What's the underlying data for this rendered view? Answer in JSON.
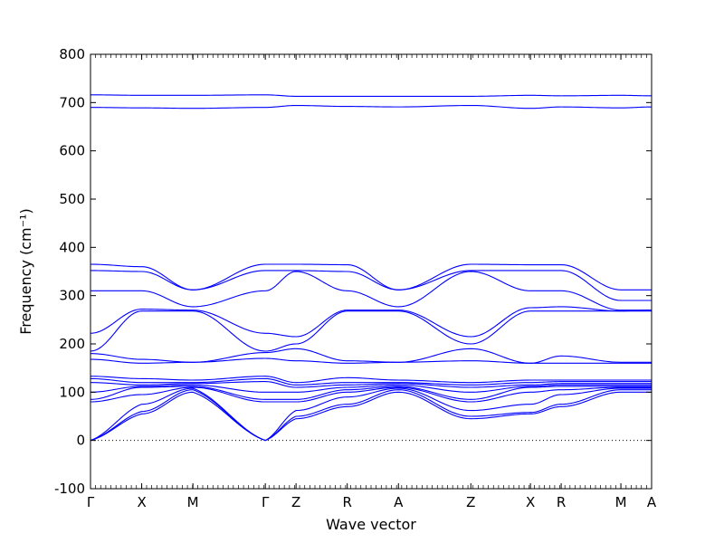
{
  "chart_data": {
    "type": "line",
    "xlabel": "Wave vector",
    "ylabel": "Frequency (cm⁻¹)",
    "ylim": [
      -100,
      800
    ],
    "y_ticks": [
      -100,
      0,
      100,
      200,
      300,
      400,
      500,
      600,
      700,
      800
    ],
    "x_ticks": [
      {
        "label": "Γ",
        "x": 0
      },
      {
        "label": "X",
        "x": 0.5
      },
      {
        "label": "M",
        "x": 1.0
      },
      {
        "label": "Γ",
        "x": 1.707
      },
      {
        "label": "Z",
        "x": 2.007
      },
      {
        "label": "R",
        "x": 2.507
      },
      {
        "label": "A",
        "x": 3.007
      },
      {
        "label": "Z",
        "x": 3.714
      },
      {
        "label": "X",
        "x": 4.296
      },
      {
        "label": "R",
        "x": 4.596
      },
      {
        "label": "M",
        "x": 5.179
      },
      {
        "label": "A",
        "x": 5.479
      }
    ],
    "xlim": [
      0,
      5.479
    ],
    "zero_line": 0,
    "line_color": "#0000ff",
    "branches": [
      [
        716,
        715,
        715,
        716,
        713,
        713,
        713,
        713,
        715,
        714,
        715,
        714
      ],
      [
        690,
        689,
        688,
        690,
        694,
        692,
        691,
        694,
        688,
        691,
        689,
        691
      ],
      [
        365,
        360,
        312,
        365,
        365,
        364,
        312,
        365,
        364,
        364,
        312,
        312
      ],
      [
        352,
        350,
        312,
        352,
        352,
        350,
        312,
        352,
        352,
        352,
        290,
        290
      ],
      [
        310,
        310,
        277,
        310,
        350,
        310,
        277,
        350,
        310,
        310,
        270,
        270
      ],
      [
        222,
        272,
        270,
        222,
        215,
        270,
        270,
        215,
        275,
        277,
        268,
        270
      ],
      [
        185,
        268,
        268,
        185,
        200,
        268,
        268,
        200,
        268,
        268,
        268,
        268
      ],
      [
        180,
        168,
        162,
        182,
        190,
        165,
        162,
        190,
        160,
        175,
        162,
        162
      ],
      [
        168,
        160,
        162,
        170,
        165,
        160,
        162,
        165,
        160,
        160,
        160,
        160
      ],
      [
        133,
        128,
        125,
        133,
        120,
        130,
        125,
        120,
        125,
        125,
        125,
        125
      ],
      [
        128,
        120,
        120,
        128,
        115,
        120,
        120,
        115,
        120,
        122,
        122,
        122
      ],
      [
        120,
        115,
        118,
        122,
        110,
        115,
        118,
        110,
        115,
        118,
        118,
        118
      ],
      [
        100,
        112,
        115,
        100,
        100,
        110,
        115,
        100,
        112,
        115,
        115,
        115
      ],
      [
        85,
        110,
        112,
        85,
        85,
        105,
        112,
        85,
        110,
        112,
        112,
        112
      ],
      [
        80,
        95,
        110,
        80,
        80,
        100,
        110,
        80,
        100,
        105,
        110,
        110
      ],
      [
        0,
        75,
        108,
        0,
        62,
        90,
        108,
        62,
        75,
        95,
        108,
        108
      ],
      [
        0,
        60,
        105,
        0,
        50,
        75,
        105,
        50,
        58,
        75,
        105,
        105
      ],
      [
        0,
        55,
        100,
        0,
        45,
        70,
        100,
        45,
        55,
        70,
        100,
        100
      ]
    ]
  }
}
